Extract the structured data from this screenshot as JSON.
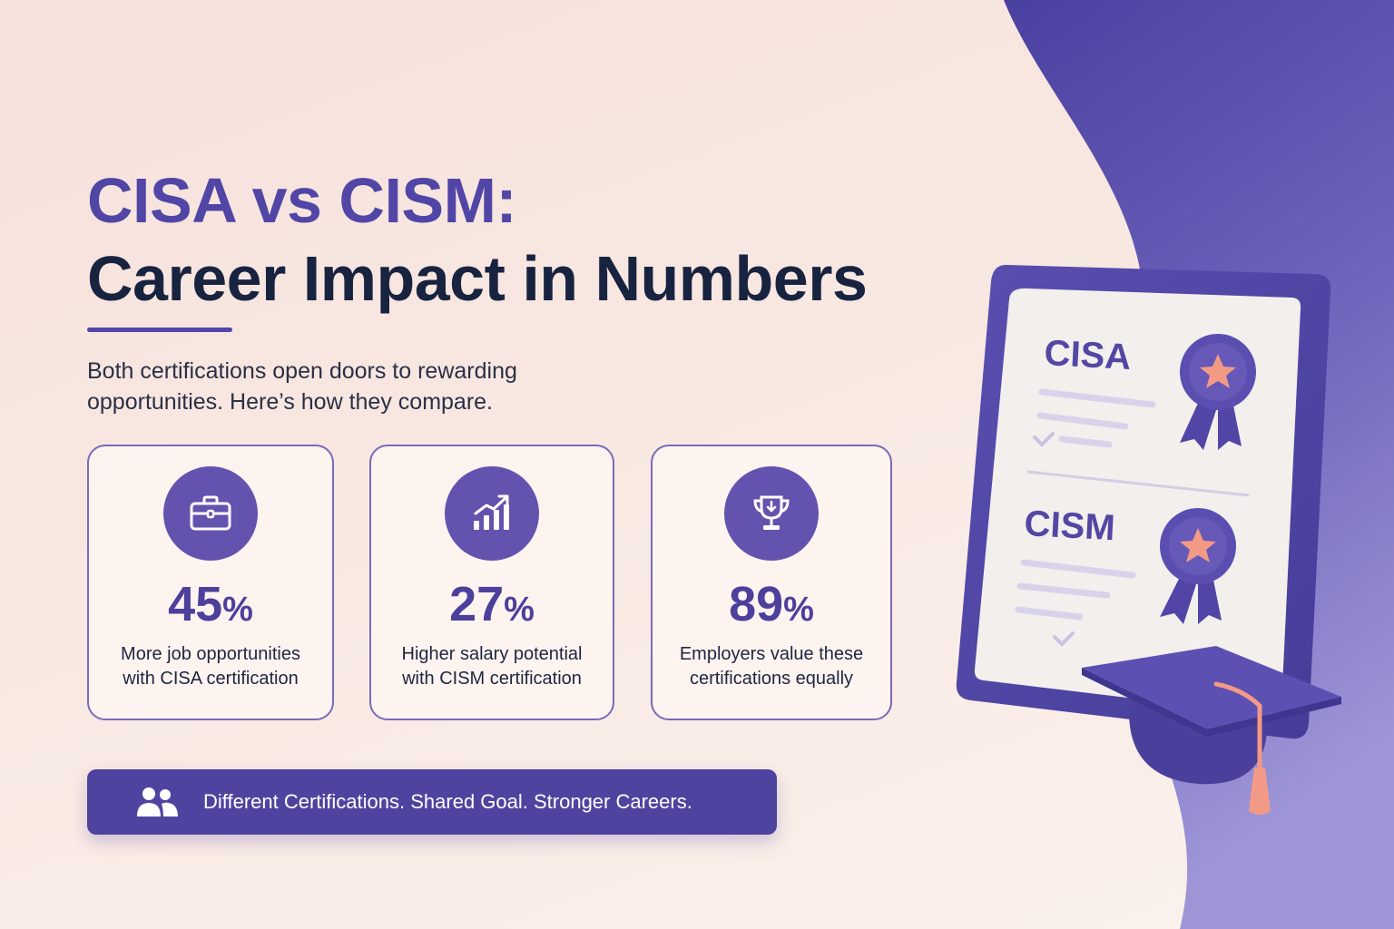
{
  "title": {
    "line1": "CISA vs CISM:",
    "line2": "Career Impact in Numbers"
  },
  "subtitle": "Both certifications open doors to rewarding opportunities. Here’s how they compare.",
  "stats": [
    {
      "icon": "briefcase-icon",
      "value": "45",
      "unit": "%",
      "label": "More job opportunities with CISA certification"
    },
    {
      "icon": "growth-chart-icon",
      "value": "27",
      "unit": "%",
      "label": "Higher salary potential with CISM certification"
    },
    {
      "icon": "trophy-icon",
      "value": "89",
      "unit": "%",
      "label": "Employers value these certifications equally"
    }
  ],
  "banner": {
    "icon": "people-icon",
    "text": "Different Certifications. Shared Goal. Stronger Careers."
  },
  "illustration": {
    "cert1": "CISA",
    "cert2": "CISM"
  },
  "colors": {
    "primary": "#5146a6",
    "dark_text": "#182340",
    "accent": "#f39a86",
    "background": "#f7e4de"
  }
}
